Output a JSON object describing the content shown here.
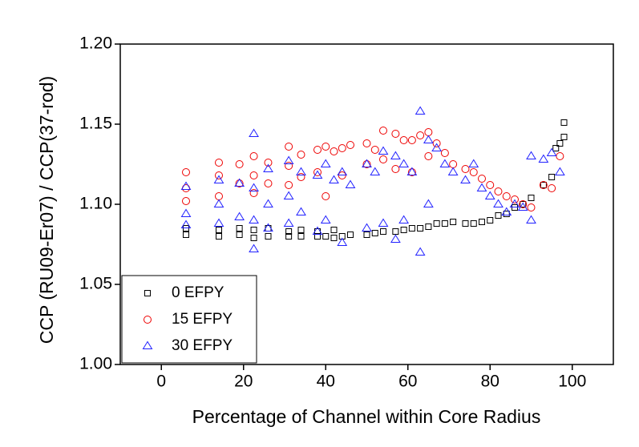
{
  "chart_data": {
    "type": "scatter",
    "x_label": "Percentage of Channel within Core Radius",
    "y_label": "CCP (RU09-Er07) / CCP(37-rod)",
    "xlim": [
      -10,
      110
    ],
    "xticks": [
      0,
      20,
      40,
      60,
      80,
      100
    ],
    "ylim": [
      1.0,
      1.2
    ],
    "yticks": [
      {
        "value": 1.0,
        "label": "1.00"
      },
      {
        "value": 1.05,
        "label": "1.05"
      },
      {
        "value": 1.1,
        "label": "1.10"
      },
      {
        "value": 1.15,
        "label": "1.15"
      },
      {
        "value": 1.2,
        "label": "1.20"
      }
    ],
    "legend": "lower left",
    "series": [
      {
        "name": "0 EFPY",
        "color": "#000000",
        "marker": "square",
        "x": [
          6,
          6,
          14,
          14,
          19,
          19,
          22.5,
          22.5,
          26,
          26,
          31,
          31,
          34,
          34,
          38,
          38,
          40,
          42,
          42,
          44,
          46,
          50,
          52,
          54,
          57,
          59,
          61,
          63,
          65,
          67,
          69,
          71,
          74,
          76,
          78,
          80,
          82,
          84,
          86,
          88,
          90,
          93,
          95,
          96,
          97,
          98,
          98
        ],
        "values": [
          1.081,
          1.085,
          1.08,
          1.084,
          1.081,
          1.085,
          1.079,
          1.084,
          1.08,
          1.085,
          1.08,
          1.083,
          1.08,
          1.084,
          1.08,
          1.083,
          1.08,
          1.079,
          1.084,
          1.08,
          1.081,
          1.081,
          1.082,
          1.083,
          1.083,
          1.084,
          1.085,
          1.085,
          1.086,
          1.088,
          1.088,
          1.089,
          1.088,
          1.088,
          1.089,
          1.09,
          1.093,
          1.094,
          1.098,
          1.1,
          1.104,
          1.112,
          1.117,
          1.135,
          1.138,
          1.142,
          1.151
        ]
      },
      {
        "name": "15 EFPY",
        "color": "#ee0000",
        "marker": "circle",
        "x": [
          6,
          6,
          6,
          14,
          14,
          14,
          19,
          19,
          22.5,
          22.5,
          22.5,
          26,
          26,
          31,
          31,
          31,
          34,
          34,
          38,
          38,
          40,
          40,
          42,
          44,
          44,
          46,
          50,
          50,
          52,
          54,
          54,
          57,
          57,
          59,
          61,
          61,
          63,
          65,
          65,
          67,
          69,
          71,
          74,
          76,
          78,
          80,
          82,
          84,
          86,
          88,
          90,
          93,
          95,
          97
        ],
        "values": [
          1.12,
          1.11,
          1.102,
          1.126,
          1.118,
          1.105,
          1.125,
          1.113,
          1.13,
          1.118,
          1.107,
          1.126,
          1.113,
          1.136,
          1.124,
          1.112,
          1.131,
          1.117,
          1.134,
          1.12,
          1.136,
          1.105,
          1.133,
          1.135,
          1.118,
          1.137,
          1.138,
          1.125,
          1.134,
          1.146,
          1.128,
          1.144,
          1.122,
          1.14,
          1.14,
          1.12,
          1.143,
          1.145,
          1.13,
          1.138,
          1.132,
          1.125,
          1.122,
          1.12,
          1.116,
          1.112,
          1.108,
          1.105,
          1.103,
          1.1,
          1.098,
          1.112,
          1.11,
          1.13
        ]
      },
      {
        "name": "30 EFPY",
        "color": "#2222ff",
        "marker": "triangle",
        "x": [
          6,
          6,
          6,
          14,
          14,
          14,
          19,
          19,
          22.5,
          22.5,
          22.5,
          22.5,
          26,
          26,
          26,
          31,
          31,
          31,
          34,
          34,
          38,
          38,
          40,
          40,
          42,
          44,
          44,
          46,
          50,
          50,
          52,
          54,
          54,
          57,
          57,
          59,
          59,
          61,
          63,
          63,
          65,
          65,
          67,
          69,
          71,
          74,
          76,
          78,
          80,
          82,
          84,
          86,
          88,
          90,
          90,
          93,
          95,
          97
        ],
        "values": [
          1.111,
          1.094,
          1.087,
          1.115,
          1.1,
          1.088,
          1.113,
          1.092,
          1.144,
          1.11,
          1.09,
          1.072,
          1.122,
          1.1,
          1.085,
          1.127,
          1.105,
          1.088,
          1.12,
          1.095,
          1.118,
          1.083,
          1.125,
          1.09,
          1.115,
          1.12,
          1.076,
          1.112,
          1.125,
          1.085,
          1.12,
          1.133,
          1.088,
          1.13,
          1.078,
          1.125,
          1.09,
          1.12,
          1.158,
          1.07,
          1.14,
          1.1,
          1.135,
          1.125,
          1.12,
          1.115,
          1.125,
          1.11,
          1.105,
          1.1,
          1.095,
          1.1,
          1.098,
          1.13,
          1.09,
          1.128,
          1.132,
          1.12
        ]
      }
    ]
  }
}
